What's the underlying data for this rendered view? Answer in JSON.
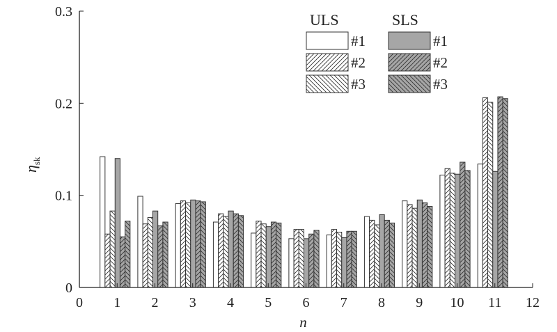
{
  "chart_data": {
    "type": "bar",
    "xlabel": "n",
    "ylabel": "η",
    "ylabel_sub": "sk",
    "xlim": [
      0,
      12
    ],
    "ylim": [
      0,
      0.3
    ],
    "xticks": [
      "0",
      "1",
      "2",
      "3",
      "4",
      "5",
      "6",
      "7",
      "8",
      "9",
      "10",
      "11",
      "12"
    ],
    "yticks": [
      "0",
      "0.1",
      "0.2",
      "0.3"
    ],
    "grid": false,
    "legend_placement": "top-right",
    "legend_groups": [
      "ULS",
      "SLS"
    ],
    "categories": [
      1,
      2,
      3,
      4,
      5,
      6,
      7,
      8,
      9,
      10,
      11
    ],
    "colors": {
      "uls_fill": "#ffffff",
      "sls_fill": "#a6a6a6",
      "stroke": "#333333"
    },
    "series": [
      {
        "name": "#1",
        "group": "ULS",
        "pattern": "none",
        "values": [
          0.142,
          0.099,
          0.091,
          0.071,
          0.059,
          0.053,
          0.057,
          0.077,
          0.094,
          0.122,
          0.134
        ]
      },
      {
        "name": "#2",
        "group": "ULS",
        "pattern": "forward-hatch",
        "values": [
          0.058,
          0.069,
          0.094,
          0.08,
          0.072,
          0.063,
          0.063,
          0.073,
          0.09,
          0.129,
          0.206
        ]
      },
      {
        "name": "#3",
        "group": "ULS",
        "pattern": "back-hatch",
        "values": [
          0.083,
          0.076,
          0.092,
          0.077,
          0.069,
          0.063,
          0.06,
          0.068,
          0.086,
          0.124,
          0.201
        ]
      },
      {
        "name": "#1",
        "group": "SLS",
        "pattern": "none",
        "values": [
          0.14,
          0.083,
          0.095,
          0.083,
          0.066,
          0.053,
          0.054,
          0.079,
          0.095,
          0.123,
          0.126
        ]
      },
      {
        "name": "#2",
        "group": "SLS",
        "pattern": "forward-hatch",
        "values": [
          0.055,
          0.067,
          0.094,
          0.08,
          0.071,
          0.058,
          0.061,
          0.073,
          0.092,
          0.136,
          0.207
        ]
      },
      {
        "name": "#3",
        "group": "SLS",
        "pattern": "back-hatch",
        "values": [
          0.072,
          0.071,
          0.093,
          0.078,
          0.07,
          0.062,
          0.061,
          0.07,
          0.088,
          0.127,
          0.205
        ]
      }
    ]
  }
}
